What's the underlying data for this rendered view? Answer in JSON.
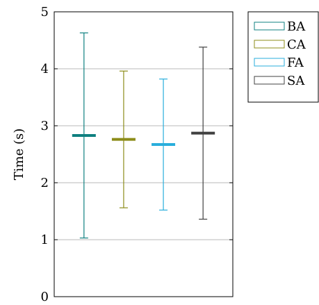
{
  "chart_data": {
    "type": "errorbar",
    "ylabel": "Time (s)",
    "ylim": [
      0,
      5
    ],
    "yticks": [
      0,
      1,
      2,
      3,
      4,
      5
    ],
    "grid": "horizontal",
    "legend_position": "right",
    "series": [
      {
        "name": "BA",
        "color": "#0f8080",
        "center": 2.83,
        "low": 1.03,
        "high": 4.63
      },
      {
        "name": "CA",
        "color": "#8c8c19",
        "center": 2.76,
        "low": 1.56,
        "high": 3.96
      },
      {
        "name": "FA",
        "color": "#29aedc",
        "center": 2.67,
        "low": 1.52,
        "high": 3.82
      },
      {
        "name": "SA",
        "color": "#404040",
        "center": 2.87,
        "low": 1.36,
        "high": 4.38
      }
    ]
  }
}
